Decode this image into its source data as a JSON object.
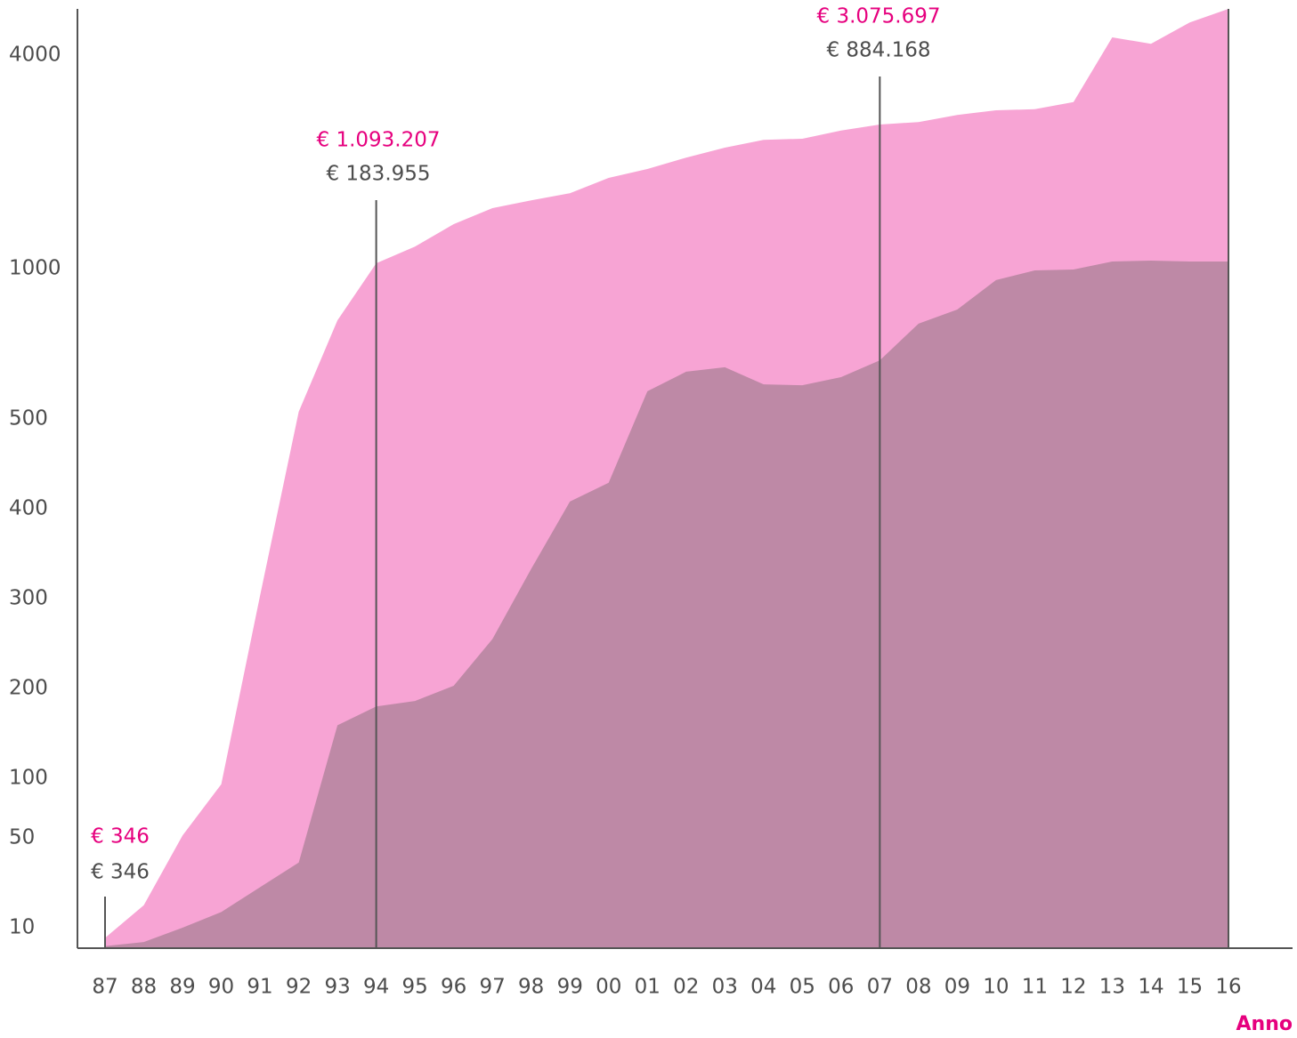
{
  "chart_data": {
    "type": "area",
    "categories": [
      "87",
      "88",
      "89",
      "90",
      "91",
      "92",
      "93",
      "94",
      "95",
      "96",
      "97",
      "98",
      "99",
      "00",
      "01",
      "02",
      "03",
      "04",
      "05",
      "06",
      "07",
      "08",
      "09",
      "10",
      "11",
      "12",
      "13",
      "14",
      "15",
      "16"
    ],
    "series": [
      {
        "color": "#f7a4d4",
        "values": [
          5,
          20,
          52,
          95,
          303,
          524,
          828,
          1075,
          1310,
          1625,
          1850,
          1960,
          2060,
          2275,
          2400,
          2560,
          2700,
          2810,
          2825,
          2940,
          3025,
          3060,
          3160,
          3225,
          3240,
          3340,
          4250,
          4160,
          4460,
          4650
        ]
      },
      {
        "color": "#be89a6",
        "values": [
          1,
          3,
          10,
          17,
          28,
          39,
          159,
          180,
          186,
          203,
          255,
          333,
          408,
          429,
          592,
          657,
          672,
          615,
          612,
          639,
          695,
          817,
          864,
          962,
          994,
          997,
          1100,
          1112,
          1100,
          1100
        ]
      }
    ],
    "ylim": [
      0,
      4650
    ],
    "yticks": [
      10,
      50,
      100,
      200,
      300,
      400,
      500,
      1000,
      4000
    ],
    "xlabel": "Anno",
    "annotations": [
      {
        "category": "87",
        "total": "€ 346",
        "part": "€ 346"
      },
      {
        "category": "94",
        "total": "€ 1.093.207",
        "part": "€ 183.955"
      },
      {
        "category": "07",
        "total": "€ 3.075.697",
        "part": "€ 884.168"
      }
    ],
    "annotation_colors": [
      "#e6007e",
      "#4d4d4d"
    ]
  }
}
